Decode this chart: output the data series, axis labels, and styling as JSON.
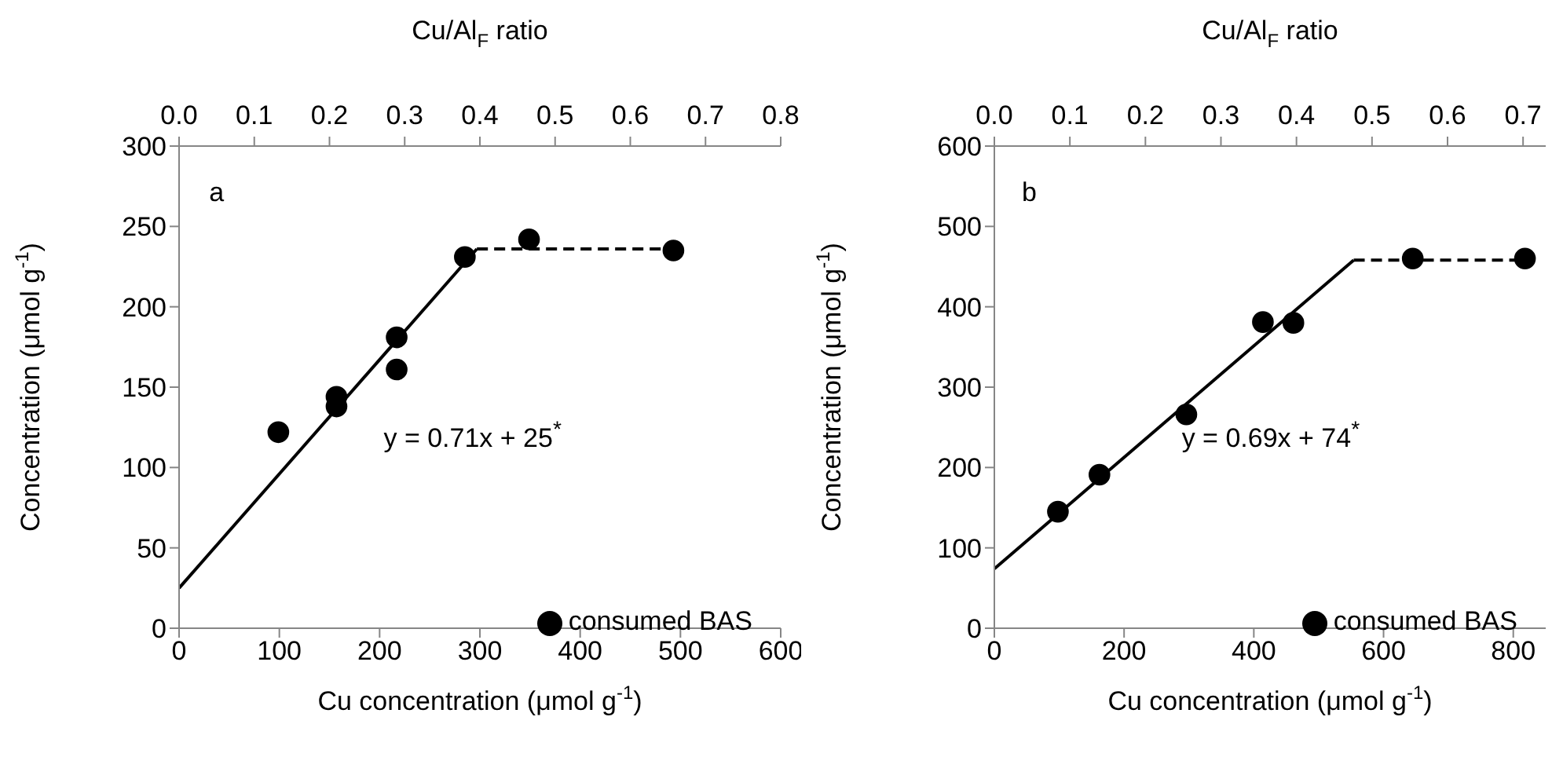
{
  "chart_data": [
    {
      "type": "scatter",
      "annotations": [
        "a",
        "y = 0.71x + 25$^{*}$"
      ],
      "xlabel": "Cu concentration (μmol g$^{-1}$)",
      "ylabel": "Concentration (μmol g$^{-1}$)",
      "x2label": "Cu/Al$_{F}$  ratio",
      "xlim": [
        0,
        600
      ],
      "xticks": [
        0,
        100,
        200,
        300,
        400,
        500,
        600
      ],
      "ylim": [
        0,
        300
      ],
      "yticks": [
        0,
        50,
        100,
        150,
        200,
        250,
        300
      ],
      "x2lim": [
        0,
        0.8
      ],
      "x2ticks": [
        {
          "value": 0,
          "label": "0.0"
        },
        0.1,
        0.2,
        0.3,
        0.4,
        0.5,
        0.6,
        0.7,
        0.8
      ],
      "legend": "bottom right",
      "grid": false,
      "series": [
        {
          "name": "consumed BAS",
          "marker": "circle",
          "color": "#000000",
          "x": [
            99,
            157,
            157,
            217,
            217,
            285,
            349,
            493
          ],
          "values": [
            122,
            144,
            138,
            181,
            161,
            231,
            242,
            235
          ]
        },
        {
          "type": "line",
          "marker": "none",
          "line_style": "solid",
          "color": "#000000",
          "x": [
            0,
            297
          ],
          "values": [
            25,
            236
          ]
        },
        {
          "type": "line",
          "marker": "none",
          "line_style": "dashed",
          "color": "#000000",
          "x": [
            297,
            493
          ],
          "values": [
            236,
            236
          ]
        }
      ]
    },
    {
      "type": "scatter",
      "annotations": [
        "b",
        "y = 0.69x + 74$^{*}$"
      ],
      "xlabel": "Cu concentration (μmol g$^{-1}$)",
      "ylabel": "Concentration (μmol g$^{-1}$)",
      "x2label": "Cu/Al$_{F}$  ratio",
      "xlim": [
        0,
        850
      ],
      "xticks": [
        0,
        200,
        400,
        600,
        800
      ],
      "ylim": [
        0,
        600
      ],
      "yticks": [
        0,
        100,
        200,
        300,
        400,
        500,
        600
      ],
      "x2lim": [
        0,
        0.73
      ],
      "x2ticks": [
        {
          "value": 0,
          "label": "0.0"
        },
        0.1,
        0.2,
        0.3,
        0.4,
        0.5,
        0.6,
        0.7
      ],
      "legend": "bottom right",
      "grid": false,
      "series": [
        {
          "name": "consumed BAS",
          "marker": "circle",
          "color": "#000000",
          "x": [
            98,
            162,
            296,
            414,
            461,
            645,
            818
          ],
          "values": [
            145,
            191,
            266,
            381,
            380,
            460,
            460
          ]
        },
        {
          "type": "line",
          "marker": "none",
          "line_style": "solid",
          "color": "#000000",
          "x": [
            0,
            554
          ],
          "values": [
            74,
            458
          ]
        },
        {
          "type": "line",
          "marker": "none",
          "line_style": "dashed",
          "color": "#000000",
          "x": [
            554,
            818
          ],
          "values": [
            458,
            458
          ]
        }
      ]
    }
  ]
}
